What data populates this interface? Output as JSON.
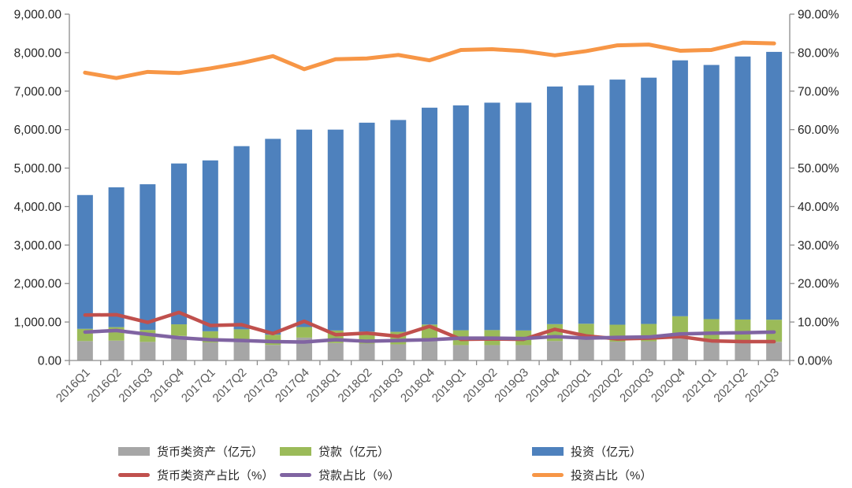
{
  "chart_data": {
    "type": "combo-stacked-bar-line",
    "title": "",
    "categories": [
      "2016Q1",
      "2016Q2",
      "2016Q3",
      "2016Q4",
      "2017Q1",
      "2017Q2",
      "2017Q3",
      "2017Q4",
      "2018Q1",
      "2018Q2",
      "2018Q3",
      "2018Q4",
      "2019Q1",
      "2019Q2",
      "2019Q3",
      "2019Q4",
      "2020Q1",
      "2020Q2",
      "2020Q3",
      "2020Q4",
      "2021Q1",
      "2021Q2",
      "2021Q3"
    ],
    "bar_series": [
      {
        "name": "货币类资产（亿元）",
        "color": "#A6A6A6",
        "axis": "left",
        "values": [
          505,
          517,
          484,
          640,
          470,
          520,
          405,
          595,
          455,
          440,
          420,
          580,
          400,
          400,
          400,
          505,
          540,
          490,
          500,
          620,
          535,
          505,
          485
        ]
      },
      {
        "name": "贷款（亿元）",
        "color": "#9BBB59",
        "axis": "left",
        "values": [
          318,
          350,
          310,
          300,
          290,
          290,
          265,
          275,
          325,
          310,
          325,
          355,
          385,
          390,
          380,
          440,
          415,
          440,
          450,
          530,
          540,
          560,
          575
        ]
      },
      {
        "name": "投资（亿元）",
        "color": "#4E81BD",
        "axis": "left",
        "values": [
          3477,
          3633,
          3786,
          4180,
          4440,
          4760,
          5090,
          5130,
          5220,
          5430,
          5505,
          5635,
          5845,
          5910,
          5920,
          6175,
          6195,
          6370,
          6400,
          6650,
          6605,
          6835,
          6960
        ]
      }
    ],
    "line_series": [
      {
        "name": "货币类资产占比（%）",
        "color": "#C0504D",
        "axis": "right",
        "values": [
          11.8,
          11.9,
          9.9,
          12.5,
          9.1,
          9.3,
          7.0,
          10.2,
          6.7,
          7.1,
          6.3,
          8.9,
          5.5,
          5.6,
          5.5,
          8.1,
          6.4,
          5.6,
          5.8,
          6.2,
          5.1,
          4.9,
          4.9
        ]
      },
      {
        "name": "贷款占比（%）",
        "color": "#8064A2",
        "axis": "right",
        "values": [
          7.4,
          7.8,
          6.8,
          5.9,
          5.4,
          5.2,
          4.9,
          4.8,
          5.4,
          5.0,
          5.2,
          5.4,
          5.8,
          5.8,
          5.7,
          6.2,
          5.8,
          6.0,
          6.1,
          6.9,
          7.1,
          7.2,
          7.4
        ]
      },
      {
        "name": "投资占比（%）",
        "color": "#F79646",
        "axis": "right",
        "values": [
          74.8,
          73.4,
          75.0,
          74.7,
          75.9,
          77.3,
          79.1,
          75.7,
          78.3,
          78.5,
          79.4,
          78.0,
          80.7,
          80.9,
          80.4,
          79.3,
          80.4,
          81.9,
          82.1,
          80.5,
          80.7,
          82.6,
          82.4
        ]
      }
    ],
    "left_axis": {
      "min": 0,
      "max": 9000,
      "step": 1000,
      "tick_labels": [
        "0.00",
        "1,000.00",
        "2,000.00",
        "3,000.00",
        "4,000.00",
        "5,000.00",
        "6,000.00",
        "7,000.00",
        "8,000.00",
        "9,000.00"
      ]
    },
    "right_axis": {
      "min": 0,
      "max": 90,
      "step": 10,
      "tick_labels": [
        "0.00%",
        "10.00%",
        "20.00%",
        "30.00%",
        "40.00%",
        "50.00%",
        "60.00%",
        "70.00%",
        "80.00%",
        "90.00%"
      ]
    },
    "grid": false,
    "legend_position": "bottom"
  },
  "colors": {
    "axis_line": "#8C8C8C",
    "axis_tick_text": "#262626",
    "category_text": "#595959",
    "background": "#FFFFFF"
  }
}
